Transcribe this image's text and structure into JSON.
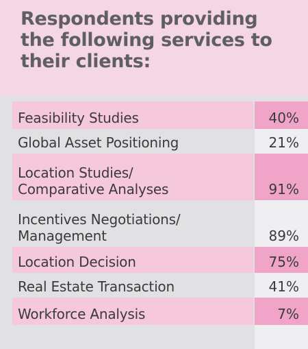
{
  "title": "Respondents providing the following services to their clients:",
  "chart_data": {
    "type": "table",
    "title": "Respondents providing the following services to their clients:",
    "rows": [
      {
        "label": "Feasibility Studies",
        "value_label": "40%",
        "value": 40
      },
      {
        "label": "Global Asset Positioning",
        "value_label": "21%",
        "value": 21
      },
      {
        "label": "Location Studies/\nComparative Analyses",
        "value_label": "91%",
        "value": 91
      },
      {
        "label": "Incentives Negotiations/\nManagement",
        "value_label": "89%",
        "value": 89
      },
      {
        "label": "Location Decision",
        "value_label": "75%",
        "value": 75
      },
      {
        "label": "Real Estate Transaction",
        "value_label": "41%",
        "value": 41
      },
      {
        "label": "Workforce Analysis",
        "value_label": "7%",
        "value": 7
      }
    ]
  },
  "colors": {
    "title_band": "#f5d6e4",
    "title_text": "#5f5f63",
    "row_highlight_label": "#f5c8dc",
    "row_highlight_value": "#f0a5c8",
    "value_column": "#efeef0",
    "background": "#e1e0e2"
  }
}
